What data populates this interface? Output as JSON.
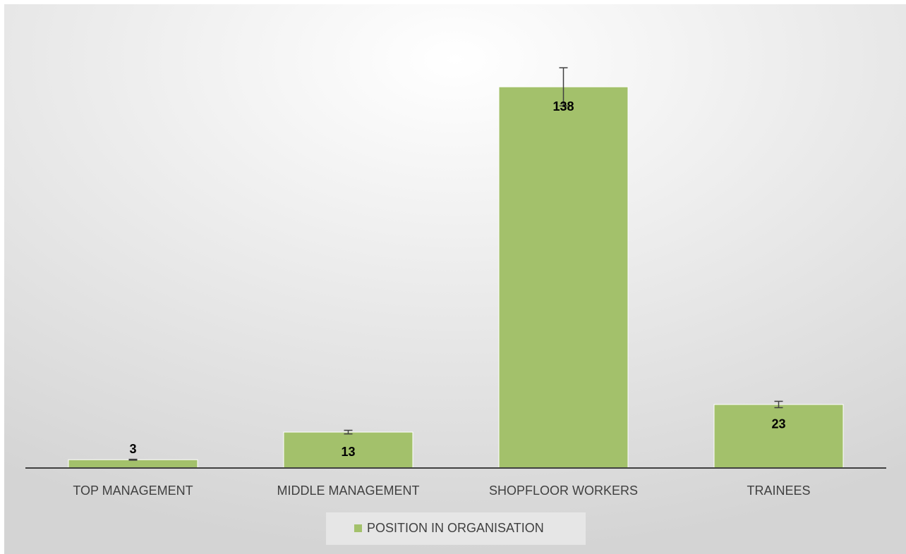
{
  "chart_data": {
    "type": "bar",
    "categories": [
      "TOP MANAGEMENT",
      "MIDDLE MANAGEMENT",
      "SHOPFLOOR WORKERS",
      "TRAINEES"
    ],
    "series": [
      {
        "name": "POSITION IN ORGANISATION",
        "color": "#a3c16b",
        "values": [
          3,
          13,
          138,
          23
        ],
        "errors": [
          0.15,
          0.65,
          6.9,
          1.15
        ]
      }
    ],
    "ylim": [
      0,
      160
    ],
    "grid": false,
    "legend": "bottom"
  }
}
